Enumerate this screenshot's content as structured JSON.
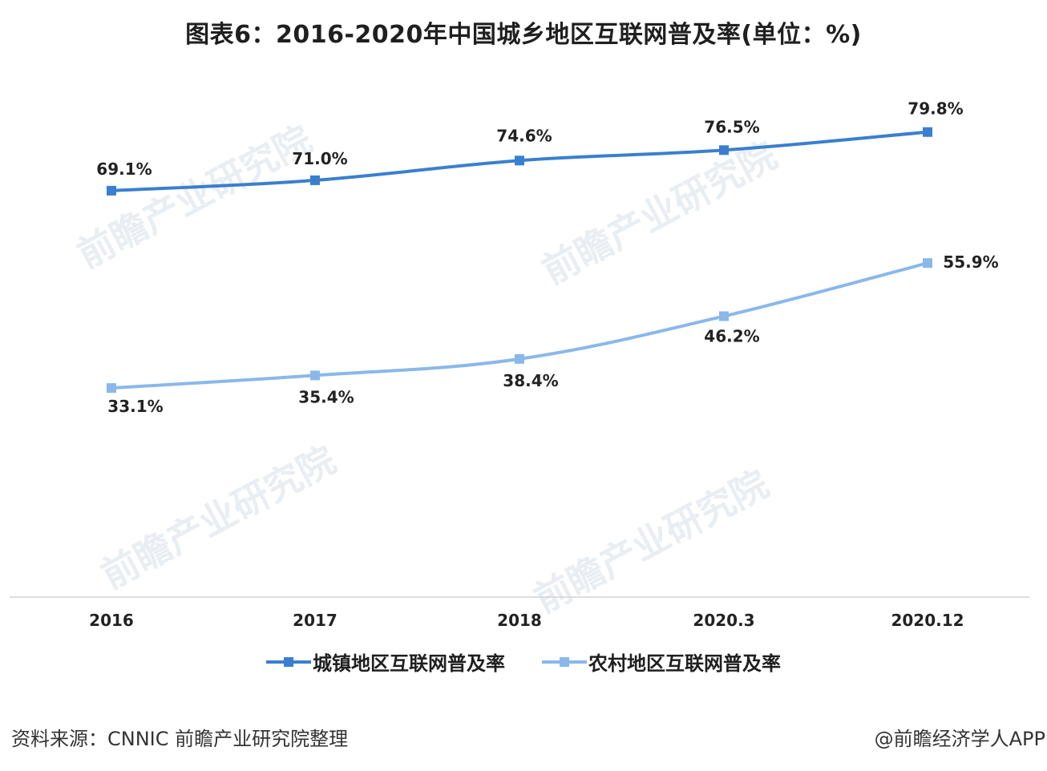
{
  "title": "图表6：2016-2020年中国城乡地区互联网普及率(单位：%)",
  "source": "资料来源：CNNIC 前瞻产业研究院整理",
  "credit": "@前瞻经济学人APP",
  "watermark_text": "前瞻产业研究院",
  "colors": {
    "urban": "#3a7fcf",
    "rural": "#8ab8ea",
    "axis": "#d4d4d4"
  },
  "chart_data": {
    "type": "line",
    "categories": [
      "2016",
      "2017",
      "2018",
      "2020.3",
      "2020.12"
    ],
    "series": [
      {
        "name": "城镇地区互联网普及率",
        "values": [
          69.1,
          71.0,
          74.6,
          76.5,
          79.8
        ],
        "labels": [
          "69.1%",
          "71.0%",
          "74.6%",
          "76.5%",
          "79.8%"
        ]
      },
      {
        "name": "农村地区互联网普及率",
        "values": [
          33.1,
          35.4,
          38.4,
          46.2,
          55.9
        ],
        "labels": [
          "33.1%",
          "35.4%",
          "38.4%",
          "46.2%",
          "55.9%"
        ]
      }
    ],
    "ylim": [
      0,
      90
    ],
    "grid": false,
    "legend_position": "bottom"
  }
}
